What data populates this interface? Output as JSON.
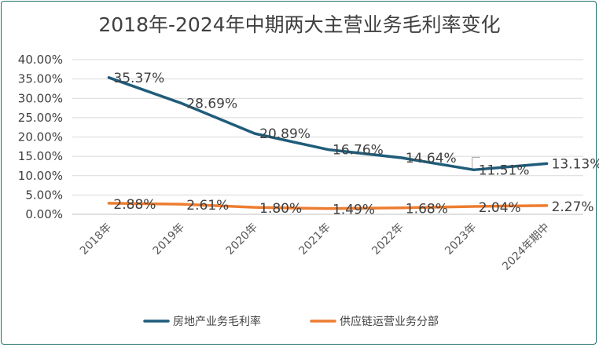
{
  "chart_data": {
    "type": "line",
    "title": "2018年-2024年中期两大主营业务毛利率变化",
    "categories": [
      "2018年",
      "2019年",
      "2020年",
      "2021年",
      "2022年",
      "2023年",
      "2024年期中"
    ],
    "ylim": [
      0,
      40
    ],
    "y_ticks": [
      "0.00%",
      "5.00%",
      "10.00%",
      "15.00%",
      "20.00%",
      "25.00%",
      "30.00%",
      "35.00%",
      "40.00%"
    ],
    "grid": true,
    "legend_position": "bottom",
    "series": [
      {
        "name": "房地产业务毛利率",
        "color": "#1f5c7a",
        "values": [
          35.37,
          28.69,
          20.89,
          16.76,
          14.64,
          11.51,
          13.13
        ],
        "labels": [
          "35.37%",
          "28.69%",
          "20.89%",
          "16.76%",
          "14.64%",
          "11.51%",
          "13.13%"
        ]
      },
      {
        "name": "供应链运营业务分部",
        "color": "#ed7d31",
        "values": [
          2.88,
          2.61,
          1.8,
          1.49,
          1.68,
          2.04,
          2.27
        ],
        "labels": [
          "2.88%",
          "2.61%",
          "1.80%",
          "1.49%",
          "1.68%",
          "2.04%",
          "2.27%"
        ]
      }
    ]
  }
}
